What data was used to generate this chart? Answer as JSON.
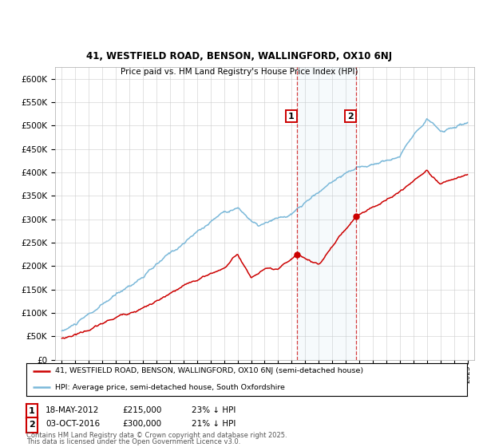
{
  "title_line1": "41, WESTFIELD ROAD, BENSON, WALLINGFORD, OX10 6NJ",
  "title_line2": "Price paid vs. HM Land Registry's House Price Index (HPI)",
  "ylim": [
    0,
    620000
  ],
  "yticks": [
    0,
    50000,
    100000,
    150000,
    200000,
    250000,
    300000,
    350000,
    400000,
    450000,
    500000,
    550000,
    600000
  ],
  "year_start": 1995,
  "year_end": 2025,
  "hpi_color": "#7ab8d9",
  "price_color": "#cc0000",
  "sale1_year": 2012.38,
  "sale1_price": 215000,
  "sale1_date": "18-MAY-2012",
  "sale1_label": "23% ↓ HPI",
  "sale2_year": 2016.75,
  "sale2_price": 300000,
  "sale2_date": "03-OCT-2016",
  "sale2_label": "21% ↓ HPI",
  "legend_line1": "41, WESTFIELD ROAD, BENSON, WALLINGFORD, OX10 6NJ (semi-detached house)",
  "legend_line2": "HPI: Average price, semi-detached house, South Oxfordshire",
  "footnote_line1": "Contains HM Land Registry data © Crown copyright and database right 2025.",
  "footnote_line2": "This data is licensed under the Open Government Licence v3.0.",
  "background_color": "#ffffff",
  "grid_color": "#cccccc"
}
